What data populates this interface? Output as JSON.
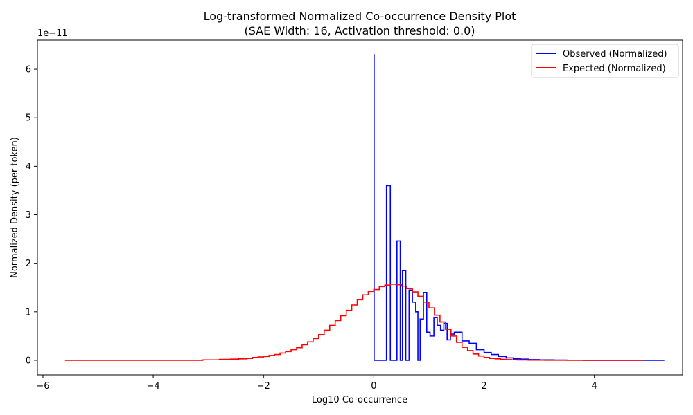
{
  "chart_data": {
    "type": "line",
    "title": "Log-transformed Normalized Co-occurrence Density Plot",
    "subtitle": "(SAE Width: 16, Activation threshold: 0.0)",
    "xlabel": "Log10 Co-occurrence",
    "ylabel": "Normalized Density (per token)",
    "y_offset_text": "1e−11",
    "xlim": [
      -6.1,
      5.6
    ],
    "ylim": [
      -0.3,
      6.6
    ],
    "x_ticks": [
      -6,
      -4,
      -2,
      0,
      2,
      4
    ],
    "x_tick_labels": [
      "−6",
      "−4",
      "−2",
      "0",
      "2",
      "4"
    ],
    "y_ticks": [
      0,
      1,
      2,
      3,
      4,
      5,
      6
    ],
    "y_tick_labels": [
      "0",
      "1",
      "2",
      "3",
      "4",
      "5",
      "6"
    ],
    "legend_position": "top-right",
    "grid": false,
    "series": [
      {
        "name": "Observed (Normalized)",
        "color": "#0000ff",
        "style": "step",
        "x": [
          0,
          0.006,
          0.2,
          0.23,
          0.3,
          0.42,
          0.48,
          0.52,
          0.58,
          0.64,
          0.7,
          0.76,
          0.8,
          0.84,
          0.9,
          0.96,
          1.02,
          1.09,
          1.15,
          1.21,
          1.27,
          1.33,
          1.39,
          1.46,
          1.6,
          1.73,
          1.86,
          2.0,
          2.13,
          2.26,
          2.4,
          2.53,
          2.66,
          2.8,
          3.0,
          3.27,
          3.5,
          3.8,
          4.2,
          4.6,
          4.9,
          5.27
        ],
        "y": [
          6.3,
          0,
          0,
          3.6,
          0,
          2.46,
          0,
          1.85,
          0,
          1.45,
          1.2,
          1.0,
          0,
          0.85,
          1.4,
          0.58,
          0.5,
          0.88,
          0.72,
          0.62,
          0.76,
          0.42,
          0.54,
          0.58,
          0.4,
          0.35,
          0.22,
          0.16,
          0.12,
          0.08,
          0.05,
          0.03,
          0.025,
          0.015,
          0.01,
          0.005,
          0.003,
          0.001,
          0.0005,
          0.0002,
          0.0001,
          0
        ]
      },
      {
        "name": "Expected (Normalized)",
        "color": "#ff0000",
        "style": "step",
        "x": [
          -5.6,
          -4.6,
          -3.6,
          -3.1,
          -2.8,
          -2.6,
          -2.45,
          -2.3,
          -2.2,
          -2.1,
          -2.0,
          -1.9,
          -1.8,
          -1.7,
          -1.6,
          -1.5,
          -1.4,
          -1.3,
          -1.2,
          -1.1,
          -1.0,
          -0.9,
          -0.8,
          -0.7,
          -0.6,
          -0.5,
          -0.4,
          -0.3,
          -0.2,
          -0.1,
          0,
          0.1,
          0.2,
          0.3,
          0.4,
          0.5,
          0.6,
          0.7,
          0.8,
          0.9,
          1.0,
          1.1,
          1.2,
          1.3,
          1.4,
          1.5,
          1.6,
          1.7,
          1.8,
          1.9,
          2.0,
          2.1,
          2.2,
          2.3,
          2.4,
          2.5,
          2.6,
          2.8,
          3.1,
          3.5,
          4.0,
          4.5,
          4.9
        ],
        "y": [
          0,
          0,
          0,
          0.01,
          0.02,
          0.025,
          0.03,
          0.04,
          0.06,
          0.07,
          0.08,
          0.1,
          0.12,
          0.15,
          0.18,
          0.22,
          0.26,
          0.32,
          0.38,
          0.45,
          0.53,
          0.62,
          0.72,
          0.82,
          0.92,
          1.03,
          1.14,
          1.25,
          1.35,
          1.42,
          1.46,
          1.52,
          1.55,
          1.57,
          1.56,
          1.53,
          1.48,
          1.41,
          1.32,
          1.2,
          1.08,
          0.93,
          0.79,
          0.64,
          0.5,
          0.37,
          0.27,
          0.2,
          0.13,
          0.09,
          0.06,
          0.04,
          0.03,
          0.02,
          0.015,
          0.01,
          0.008,
          0.004,
          0.002,
          0.001,
          0.0005,
          0.0002,
          0
        ]
      }
    ]
  }
}
